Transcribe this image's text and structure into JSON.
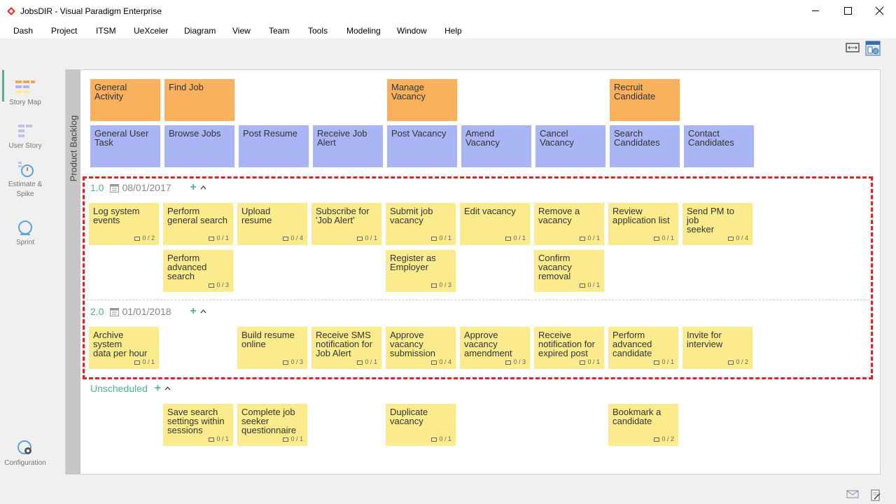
{
  "window": {
    "title": "JobsDIR - Visual Paradigm Enterprise"
  },
  "menu": [
    "Dash",
    "Project",
    "ITSM",
    "UeXceler",
    "Diagram",
    "View",
    "Team",
    "Tools",
    "Modeling",
    "Window",
    "Help"
  ],
  "nav": [
    {
      "label_lines": [
        "Story Map"
      ],
      "icon": "story-map-icon",
      "active": true
    },
    {
      "label_lines": [
        "User Story"
      ],
      "icon": "user-story-icon",
      "active": false
    },
    {
      "label_lines": [
        "Estimate &",
        "Spike"
      ],
      "icon": "estimate-spike-icon",
      "active": false
    },
    {
      "label_lines": [
        "Sprint"
      ],
      "icon": "sprint-icon",
      "active": false
    },
    {
      "label_lines": [
        "Configuration"
      ],
      "icon": "configuration-icon",
      "active": false
    }
  ],
  "backlog_label": "Product Backlog",
  "activities": [
    {
      "col": 0,
      "lines": [
        "General Activity"
      ]
    },
    {
      "col": 1,
      "lines": [
        "Find Job"
      ]
    },
    {
      "col": 4,
      "lines": [
        "Manage",
        "Vacancy"
      ]
    },
    {
      "col": 7,
      "lines": [
        "Recruit",
        "Candidate"
      ]
    }
  ],
  "tasks": [
    {
      "col": 0,
      "lines": [
        "General User",
        "Task"
      ]
    },
    {
      "col": 1,
      "lines": [
        "Browse Jobs"
      ]
    },
    {
      "col": 2,
      "lines": [
        "Post Resume"
      ]
    },
    {
      "col": 3,
      "lines": [
        "Receive Job",
        "Alert"
      ]
    },
    {
      "col": 4,
      "lines": [
        "Post Vacancy"
      ]
    },
    {
      "col": 5,
      "lines": [
        "Amend",
        "Vacancy"
      ]
    },
    {
      "col": 6,
      "lines": [
        "Cancel",
        "Vacancy"
      ]
    },
    {
      "col": 7,
      "lines": [
        "Search",
        "Candidates"
      ]
    },
    {
      "col": 8,
      "lines": [
        "Contact",
        "Candidates"
      ]
    }
  ],
  "releases": [
    {
      "name": "1.0",
      "date": "08/01/2017",
      "stories": [
        {
          "col": 0,
          "row": 0,
          "lines": [
            "Log system",
            "events"
          ],
          "badge": "0 / 2"
        },
        {
          "col": 1,
          "row": 0,
          "lines": [
            "Perform",
            "general search"
          ],
          "badge": "0 / 1"
        },
        {
          "col": 2,
          "row": 0,
          "lines": [
            "Upload resume"
          ],
          "badge": "0 / 4"
        },
        {
          "col": 3,
          "row": 0,
          "lines": [
            "Subscribe for",
            "'Job Alert'"
          ],
          "badge": "0 / 1"
        },
        {
          "col": 4,
          "row": 0,
          "lines": [
            "Submit job",
            "vacancy"
          ],
          "badge": "0 / 1"
        },
        {
          "col": 5,
          "row": 0,
          "lines": [
            "Edit vacancy"
          ],
          "badge": "0 / 1"
        },
        {
          "col": 6,
          "row": 0,
          "lines": [
            "Remove a",
            "vacancy"
          ],
          "badge": "0 / 1"
        },
        {
          "col": 7,
          "row": 0,
          "lines": [
            "Review",
            "application list"
          ],
          "badge": "0 / 1"
        },
        {
          "col": 8,
          "row": 0,
          "lines": [
            "Send PM to job",
            "seeker"
          ],
          "badge": "0 / 4"
        },
        {
          "col": 1,
          "row": 1,
          "lines": [
            "Perform",
            "advanced",
            "search"
          ],
          "badge": "0 / 3"
        },
        {
          "col": 4,
          "row": 1,
          "lines": [
            "Register as",
            "Employer"
          ],
          "badge": "0 / 3"
        },
        {
          "col": 6,
          "row": 1,
          "lines": [
            "Confirm",
            "vacancy",
            "removal"
          ],
          "badge": "0 / 1"
        }
      ]
    },
    {
      "name": "2.0",
      "date": "01/01/2018",
      "stories": [
        {
          "col": 0,
          "row": 0,
          "lines": [
            "Archive system",
            "data per hour"
          ],
          "badge": "0 / 1"
        },
        {
          "col": 2,
          "row": 0,
          "lines": [
            "Build resume",
            "online"
          ],
          "badge": "0 / 3"
        },
        {
          "col": 3,
          "row": 0,
          "lines": [
            "Receive SMS",
            "notification for",
            "Job Alert"
          ],
          "badge": "0 / 1"
        },
        {
          "col": 4,
          "row": 0,
          "lines": [
            "Approve",
            "vacancy",
            "submission"
          ],
          "badge": "0 / 4"
        },
        {
          "col": 5,
          "row": 0,
          "lines": [
            "Approve",
            "vacancy",
            "amendment"
          ],
          "badge": "0 / 3"
        },
        {
          "col": 6,
          "row": 0,
          "lines": [
            "Receive",
            "notification for",
            "expired post"
          ],
          "badge": "0 / 1"
        },
        {
          "col": 7,
          "row": 0,
          "lines": [
            "Perform",
            "advanced",
            "candidate"
          ],
          "badge": "0 / 1"
        },
        {
          "col": 8,
          "row": 0,
          "lines": [
            "Invite for",
            "interview"
          ],
          "badge": "0 / 2"
        }
      ]
    }
  ],
  "unscheduled": {
    "name": "Unscheduled",
    "stories": [
      {
        "col": 1,
        "lines": [
          "Save search",
          "settings within",
          "sessions"
        ],
        "badge": "0 / 1"
      },
      {
        "col": 2,
        "lines": [
          "Complete job",
          "seeker",
          "questionnaire"
        ],
        "badge": "0 / 1"
      },
      {
        "col": 4,
        "lines": [
          "Duplicate",
          "vacancy"
        ],
        "badge": "0 / 1"
      },
      {
        "col": 7,
        "lines": [
          "Bookmark a",
          "candidate"
        ],
        "badge": "0 / 2"
      }
    ]
  },
  "colors": {
    "activity": "#f9b15e",
    "task": "#a9b5f5",
    "story": "#fbeb8c",
    "accent": "#4fb58d",
    "highlight": "#d22a2a"
  }
}
